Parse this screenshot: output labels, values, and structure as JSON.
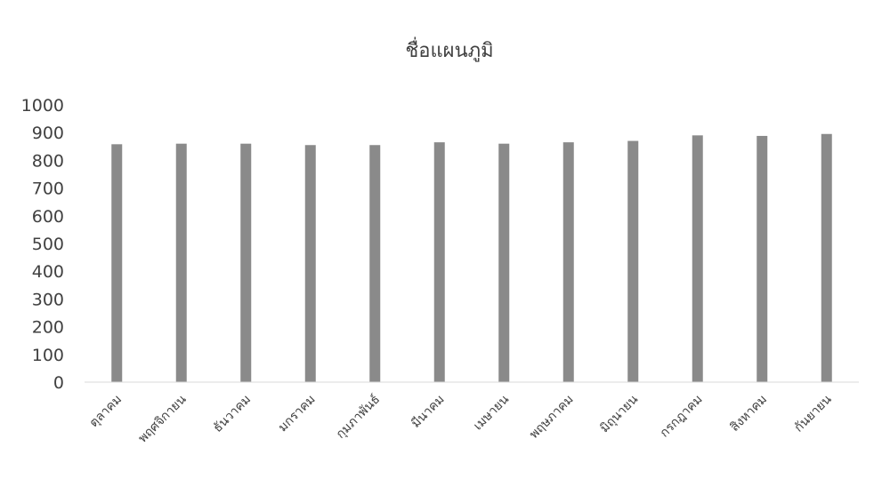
{
  "chart_data": {
    "type": "bar",
    "title": "ชื่อแผนภูมิ",
    "xlabel": "",
    "ylabel": "",
    "categories": [
      "ตุลาคม",
      "พฤศจิกายน",
      "ธันวาคม",
      "มกราคม",
      "กุมภาพันธ์",
      "มีนาคม",
      "เมษายน",
      "พฤษภาคม",
      "มิถุนายน",
      "กรกฎาคม",
      "สิงหาคม",
      "กันยายน"
    ],
    "values": [
      858,
      860,
      860,
      855,
      855,
      865,
      860,
      865,
      870,
      890,
      888,
      895
    ],
    "ylim": [
      0,
      1000
    ],
    "yticks": [
      0,
      100,
      200,
      300,
      400,
      500,
      600,
      700,
      800,
      900,
      1000
    ],
    "grid": false,
    "legend": "none",
    "bar_color": "#8a8a8a",
    "axis_color": "#d9d9d9"
  }
}
